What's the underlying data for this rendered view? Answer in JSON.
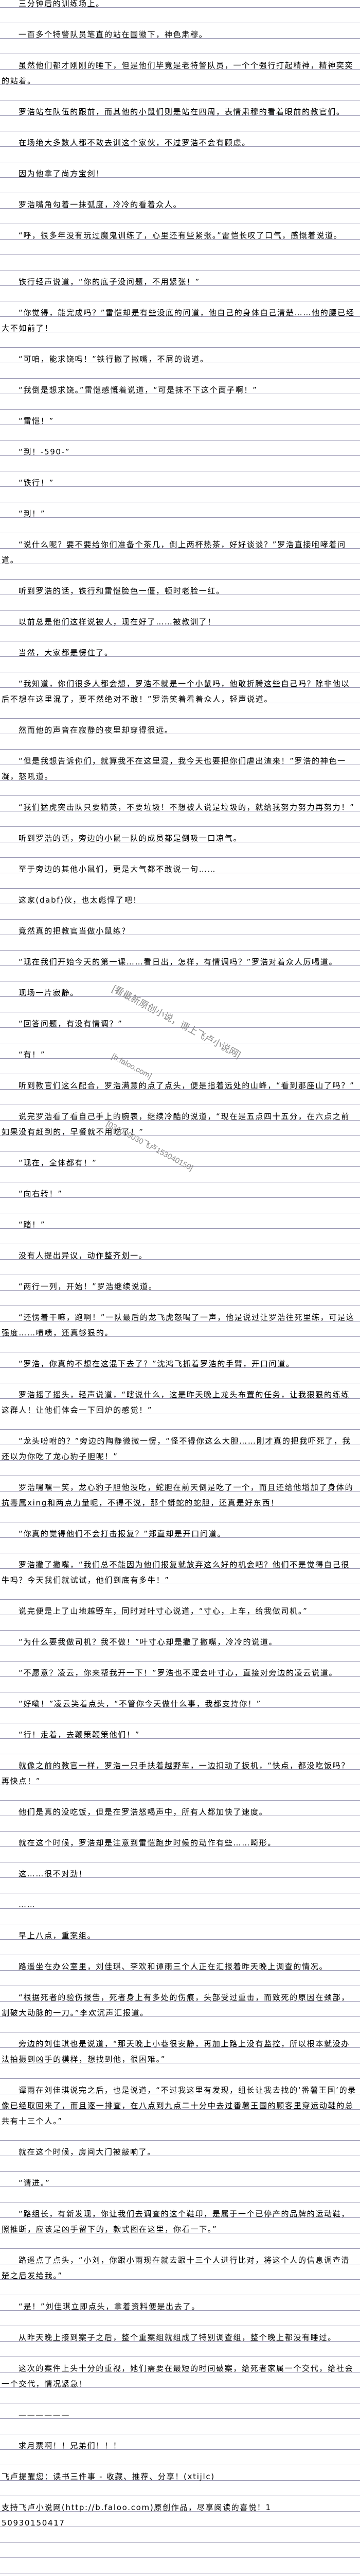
{
  "content": {
    "paragraphs": [
      "三分钟后的训练场上。",
      "一百多个特警队员笔直的站在国徽下，神色肃穆。",
      "虽然他们都才刚刚的睡下，但是他们毕竟是老特警队员，一个个强行打起精神，精神奕奕的站着。",
      "罗浩站在队伍的跟前，而其他的小鼠们则是站在四周，表情肃穆的看着眼前的教官们。",
      "在场绝大多数人都不敢去训这个家伙，不过罗浩不会有顾虑。",
      "因为他拿了尚方宝剑！",
      "罗浩嘴角勾着一抹弧度，冷冷的看着众人。",
      "“呼，很多年没有玩过魔鬼训练了，心里还有些紧张。”雷恺长叹了口气，感慨着说道。",
      "铁行轻声说道，“你的底子没问题，不用紧张！”",
      "“你觉得，能完成吗？”雷恺却是有些没底的问道，他自己的身体自己清楚……他的腰已经大不如前了！",
      "“可咱，能求饶吗！”铁行撇了撇嘴，不屑的说道。",
      "“我倒是想求饶。”雷恺感慨着说道，“可是抹不下这个面子啊！”",
      "“雷恺！”",
      "“到！-590-”",
      "“铁行！”",
      "“到！”",
      "“说什么呢？要不要给你们准备个茶几，倒上两杯热茶，好好谈谈？”罗浩直接咆哮着问道。",
      "听到罗浩的话，铁行和雷恺脸色一僵，顿时老脸一红。",
      "以前总是他们这样说被人，现在好了……被教训了！",
      "当然，大家都是愣住了。",
      "“我知道，你们很多人都会想，罗浩不就是一个小鼠吗，他敢折腾这些自己吗？除非他以后不想在这里混了，要不然绝对不敢！”罗浩笑着看着众人，轻声说道。",
      "然而他的声音在寂静的夜里却穿得很远。",
      "“但是我想告诉你们，就算我不在这里混，我今天也要把你们虐出渣来！”罗浩的神色一凝，怒吼道。",
      "“我们猛虎突击队只要精英，不要垃圾！不想被人说是垃圾的，就给我努力努力再努力！”",
      "听到罗浩的话，旁边的小鼠一队的成员都是倒吸一口凉气。",
      "至于旁边的其他小鼠们，更是大气都不敢说一句……",
      "这家(dabf)伙，也太彪悍了吧！",
      "竟然真的把教官当做小鼠练？",
      "“现在我们开始今天的第一课……看日出，怎样，有情调吗？”罗浩对着众人厉喝道。",
      "现场一片寂静。",
      "“回答问题，有没有情调？”",
      "“有！”",
      "听到教官们这么配合，罗浩满意的点了点头，便是指着远处的山峰，“看到那座山了吗？”",
      "说完罗浩看了看自己手上的腕表，继续冷酷的说道，“现在是五点四十五分，在六点之前如果没有赶到的，早餐就不用吃了！”",
      "“现在，全体都有！”",
      "“向右转！”",
      "“踏！”",
      "没有人提出异议，动作整齐划一。",
      "“两行一列，开始！”罗浩继续说道。",
      "“还愣着干嘛，跑啊！”一队最后的龙飞虎怒喝了一声，他是说过让罗浩往死里练，可是这强度……啧啧，还真够狠的。",
      "“罗浩，你真的不想在这混下去了？”沈鸿飞抓着罗浩的手臂，开口问道。",
      "罗浩摇了摇头，轻声说道，“瞎说什么，这是昨天晚上龙头布置的任务，让我狠狠的练练这群人！让他们体会一下回炉的感觉！”",
      "“龙头吩咐的？”旁边的陶静微微一愣，“怪不得你这么大胆……刚才真的把我吓死了，我还以为你吃了龙心豹子胆呢！”",
      "罗浩嘿嘿一笑，龙心豹子胆他没吃，蛇胆在前天倒是吃了一个，而且还给他增加了身体的抗毒属xing和两点力量呢，不得不说，那个蟒蛇的蛇胆，还真是好东西！",
      "“你真的觉得他们不会打击报复？”郑直却是开口问道。",
      "罗浩撇了撇嘴，“我们总不能因为他们报复就放弃这么好的机会吧？他们不是觉得自己很牛吗？今天我们就试试，他们到底有多牛！”",
      "说完便是上了山地越野车，同时对叶寸心说道，“寸心，上车，给我做司机。”",
      "“为什么要我做司机？我不做！”叶寸心却是撇了撇嘴，冷冷的说道。",
      "“不愿意？凌云，你来帮我开一下！”罗浩也不理会叶寸心，直接对旁边的凌云说道。",
      "“好嘞！”凌云笑着点头，“不管你今天做什么事，我都支持你！”",
      "“行！走着，去鞭策鞭策他们！”",
      "就像之前的教官一样，罗浩一只手扶着越野车，一边扣动了扳机，“快点，都没吃饭吗？再快点！”",
      "他们是真的没吃饭，但是在罗浩怒喝声中，所有人都加快了速度。",
      "就在这个时候，罗浩却是注意到雷恺跑步时候的动作有些……畸形。",
      "这……很不对劲！",
      "……",
      "早上八点，重案组。",
      "路遥坐在办公室里，刘佳琪、李欢和谭雨三个人正在汇报着昨天晚上调查的情况。",
      "“根据死者的验伤报告，死者身上有多处的伤痕，头部受过重击，而致死的原因在颈部，割破大动脉的一刀。”李欢沉声汇报道。",
      "旁边的刘佳琪也是说道，“那天晚上小巷很安静，再加上路上没有监控，所以根本就没办法拍摄到凶手的模样，想找到他，很困难。”",
      "谭雨在刘佳琪说完之后，也是说道，“不过我这里有发现，组长让我去找的‘番薯王国’的录像已经取回来了，而且逐一排查，在八点到九点二十分中去过番薯王国的顾客里穿运动鞋的总共有十三个人。”",
      "就在这个时候，房间大门被敲响了。",
      "“请进。”",
      "“路组长，有新发现，你让我们去调查的这个鞋印，是属于一个已停产的品牌的运动鞋，照推断，应该是凶手留下的，款式图在这里，你看一下。”",
      "路遥点了点头，“小刘，你跟小雨现在就去跟十三个人进行比对，将这个人的信息调查清楚之后发给我。”",
      "“是！”刘佳琪立即点头，拿着资料便是出去了。",
      "从昨天晚上接到案子之后，整个重案组就组成了特别调查组，整个晚上都没有睡过。",
      "这次的案件上头十分的重视，她们需要在最短的时间破案，给死者家属一个交代，给社会一个交代，情况紧急！",
      "——————",
      "求月票啊！！兄弟们！！！"
    ]
  },
  "footer": {
    "reminder": "飞卢提醒您：读书三件事 - 收藏、推荐、分享！(xtijlc)",
    "support": "支持飞卢小说网(http://b.faloo.com)原创作品，尽享阅读的喜悦！1",
    "code": "50930150417"
  },
  "watermarks": {
    "slogan": "[看最新原创小说，请上飞卢小说网]",
    "site": "[b.faloo.com]",
    "id": "[034009030飞卢153040150]"
  },
  "colors": {
    "rule_line": "#9a98b4",
    "watermark": "#8a8a8a",
    "text": "#000000"
  }
}
